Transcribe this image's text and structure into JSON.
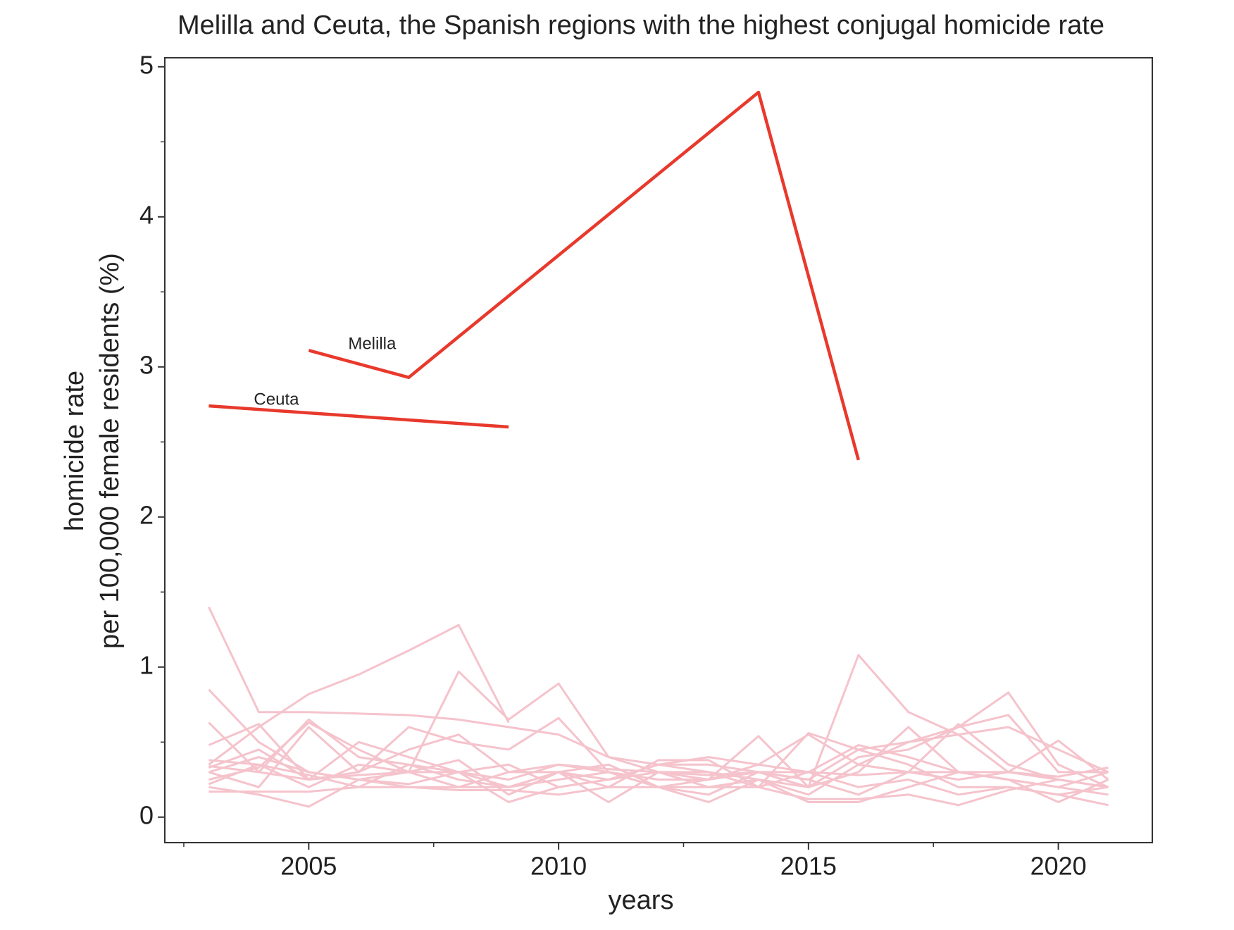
{
  "chart_data": {
    "type": "line",
    "title": "Melilla and Ceuta, the Spanish regions with the highest conjugal homicide rate",
    "xlabel": "years",
    "ylabel": [
      "homicide rate",
      "per 100,000 female residents (%)"
    ],
    "x": [
      2003,
      2004,
      2005,
      2006,
      2007,
      2008,
      2009,
      2010,
      2011,
      2012,
      2013,
      2014,
      2015,
      2016,
      2017,
      2018,
      2019,
      2020,
      2021
    ],
    "xlim": [
      2002.12,
      2021.88
    ],
    "xticks": [
      2005,
      2010,
      2015,
      2020
    ],
    "xminorticks": [
      2002.5,
      2007.5,
      2012.5,
      2017.5
    ],
    "ylim": [
      -0.17,
      5.06
    ],
    "yticks": [
      0,
      1,
      2,
      3,
      4,
      5
    ],
    "yminorticks": [
      0.5,
      1.5,
      2.5,
      3.5,
      4.5
    ],
    "grid": false,
    "series": [
      {
        "color": "#f5c3cc",
        "values": [
          1.4,
          0.7,
          0.7,
          0.69,
          0.68,
          0.65,
          0.6,
          0.55,
          0.4,
          0.35,
          0.35,
          0.3,
          0.25,
          0.45,
          0.5,
          0.55,
          0.6,
          0.45,
          0.3
        ]
      },
      {
        "color": "#f5c3cc",
        "values": [
          0.35,
          0.6,
          0.82,
          0.95,
          1.11,
          1.28,
          0.63,
          null,
          null,
          null,
          null,
          null,
          null,
          null,
          null,
          null,
          null,
          null,
          null
        ]
      },
      {
        "color": "#f5c3cc",
        "values": [
          0.85,
          0.5,
          0.3,
          0.25,
          0.3,
          0.97,
          0.65,
          0.89,
          0.4,
          0.3,
          0.25,
          0.3,
          0.2,
          1.08,
          0.7,
          0.55,
          0.3,
          0.25,
          0.2
        ]
      },
      {
        "color": "#f5c3cc",
        "values": [
          0.63,
          0.3,
          0.65,
          0.4,
          0.35,
          0.3,
          0.2,
          0.3,
          0.25,
          0.3,
          0.2,
          0.25,
          0.2,
          0.4,
          0.45,
          0.6,
          0.83,
          0.35,
          0.2
        ]
      },
      {
        "color": "#f5c3cc",
        "values": [
          0.48,
          0.62,
          0.25,
          0.3,
          0.6,
          0.5,
          0.45,
          0.66,
          0.3,
          0.25,
          0.25,
          0.35,
          0.55,
          0.35,
          0.3,
          0.25,
          0.3,
          0.51,
          0.25
        ]
      },
      {
        "color": "#f5c3cc",
        "values": [
          0.33,
          0.45,
          0.25,
          0.5,
          0.4,
          0.3,
          0.1,
          0.2,
          0.25,
          0.35,
          0.3,
          0.25,
          0.15,
          0.35,
          0.5,
          0.6,
          0.68,
          0.3,
          0.3
        ]
      },
      {
        "color": "#f5c3cc",
        "values": [
          0.3,
          0.2,
          0.6,
          0.3,
          0.45,
          0.55,
          0.3,
          0.3,
          0.35,
          0.2,
          0.25,
          0.54,
          0.2,
          0.3,
          0.6,
          0.3,
          0.25,
          0.2,
          0.15
        ]
      },
      {
        "color": "#f5c3cc",
        "values": [
          0.22,
          0.35,
          0.28,
          0.2,
          0.35,
          0.25,
          0.2,
          0.3,
          0.1,
          0.3,
          0.3,
          0.2,
          0.56,
          0.45,
          0.35,
          0.2,
          0.2,
          0.15,
          0.08
        ]
      },
      {
        "color": "#f5c3cc",
        "values": [
          0.2,
          0.15,
          0.07,
          0.25,
          0.2,
          0.2,
          0.2,
          0.25,
          0.3,
          0.2,
          0.1,
          0.25,
          0.1,
          0.1,
          0.2,
          0.3,
          0.25,
          0.2,
          0.3
        ]
      },
      {
        "color": "#f5c3cc",
        "values": [
          0.17,
          0.17,
          0.17,
          0.2,
          0.2,
          0.18,
          0.18,
          0.15,
          0.2,
          0.2,
          0.2,
          0.2,
          0.12,
          0.12,
          0.15,
          0.08,
          0.18,
          0.25,
          0.2
        ]
      },
      {
        "color": "#f5c3cc",
        "values": [
          0.34,
          0.3,
          0.25,
          0.28,
          0.3,
          0.3,
          0.25,
          0.35,
          0.32,
          0.3,
          0.28,
          0.3,
          0.3,
          0.28,
          0.3,
          0.3,
          0.3,
          0.27,
          0.33
        ]
      },
      {
        "color": "#f5c3cc",
        "values": [
          0.3,
          0.4,
          0.3,
          0.25,
          0.22,
          0.3,
          0.35,
          0.2,
          0.25,
          0.35,
          0.4,
          0.35,
          0.3,
          0.2,
          0.25,
          0.15,
          0.2,
          0.15,
          0.2
        ]
      },
      {
        "color": "#f5c3cc",
        "values": [
          0.25,
          0.33,
          0.63,
          0.45,
          0.3,
          0.2,
          0.3,
          0.35,
          0.3,
          0.2,
          0.15,
          0.3,
          0.25,
          0.15,
          0.3,
          0.62,
          0.35,
          0.25,
          0.2
        ]
      },
      {
        "color": "#f5c3cc",
        "values": [
          0.38,
          0.35,
          0.2,
          0.35,
          0.3,
          0.38,
          0.15,
          0.3,
          0.2,
          0.38,
          0.38,
          0.2,
          0.3,
          0.48,
          0.4,
          0.3,
          0.25,
          0.1,
          0.25
        ]
      },
      {
        "name": "Melilla",
        "color": "#e8392c",
        "x": [
          2005,
          2007,
          2014,
          2016
        ],
        "values": [
          3.11,
          2.93,
          4.83,
          2.38
        ]
      },
      {
        "name": "Ceuta",
        "color": "#e8392c",
        "x": [
          2003,
          2009
        ],
        "values": [
          2.74,
          2.6
        ]
      }
    ]
  }
}
